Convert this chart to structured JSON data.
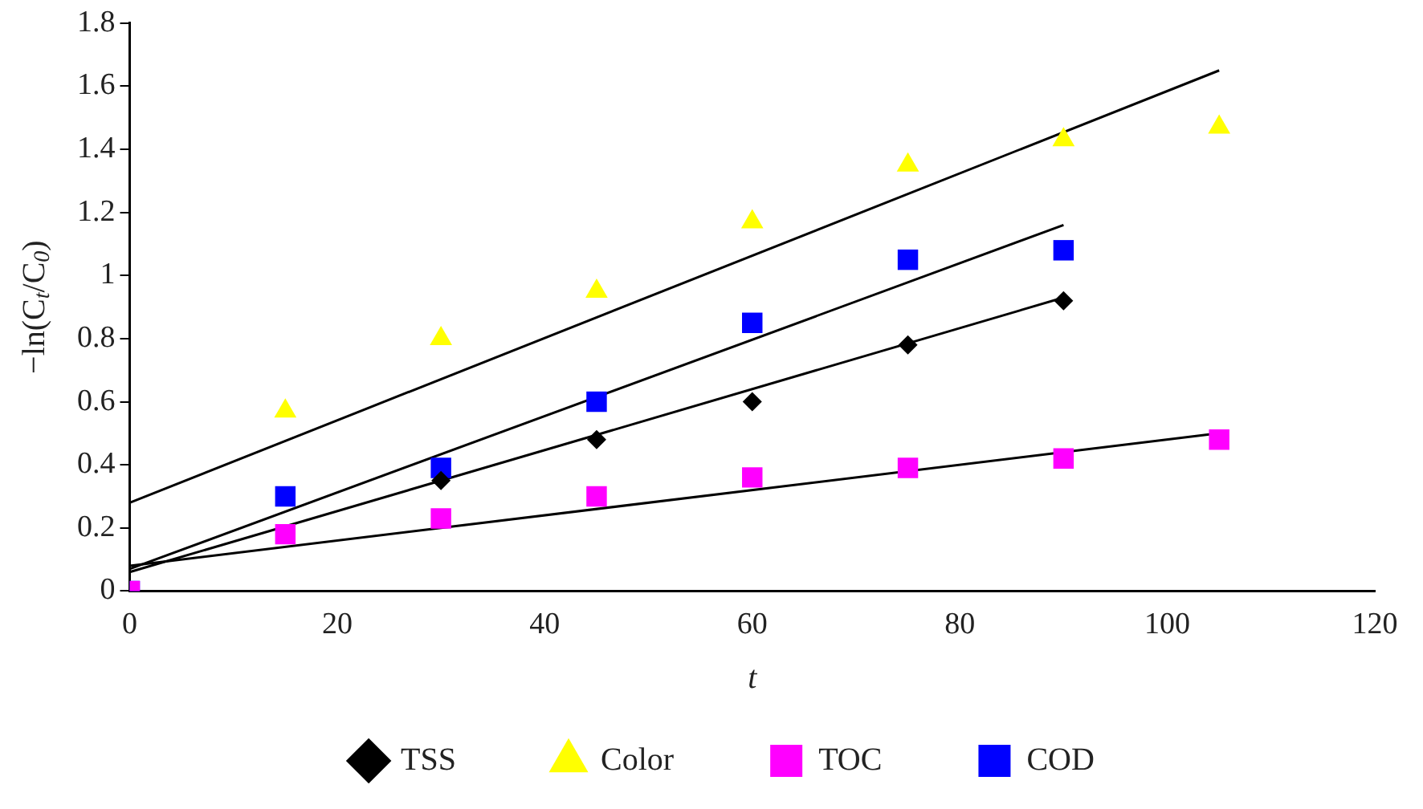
{
  "chart_data": {
    "type": "scatter",
    "xlabel": "t",
    "ylabel": "−ln(C$_{t}$/C$_{0}$)",
    "xlim": [
      0,
      120
    ],
    "xticks": [
      0,
      20,
      40,
      60,
      80,
      100,
      120
    ],
    "ylim": [
      0,
      1.8
    ],
    "yticks": [
      0,
      0.2,
      0.4,
      0.6,
      0.8,
      1,
      1.2,
      1.4,
      1.6,
      1.8
    ],
    "grid": false,
    "legend": "bottom",
    "series": [
      {
        "name": "TSS",
        "marker": "diamond",
        "color": "#000000",
        "x": [
          30,
          45,
          60,
          75,
          90
        ],
        "values": [
          0.35,
          0.48,
          0.6,
          0.78,
          0.92
        ]
      },
      {
        "name": "Color",
        "marker": "triangle",
        "color": "#ffff00",
        "x": [
          15,
          30,
          45,
          60,
          75,
          90,
          105
        ],
        "values": [
          0.57,
          0.8,
          0.95,
          1.17,
          1.35,
          1.43,
          1.47
        ]
      },
      {
        "name": "TOC",
        "marker": "square",
        "color": "#ff00ff",
        "x": [
          0,
          15,
          30,
          45,
          60,
          75,
          90,
          105
        ],
        "values": [
          0,
          0.18,
          0.23,
          0.3,
          0.36,
          0.39,
          0.42,
          0.48
        ]
      },
      {
        "name": "COD",
        "marker": "square",
        "color": "#0000ff",
        "x": [
          0,
          15,
          30,
          45,
          60,
          75,
          90
        ],
        "values": [
          0,
          0.3,
          0.39,
          0.6,
          0.85,
          1.05,
          1.08
        ]
      },
      {
        "type": "line",
        "marker": "none",
        "color": "#000000",
        "x": [
          0,
          105
        ],
        "values": [
          0.28,
          1.65
        ]
      },
      {
        "type": "line",
        "marker": "none",
        "color": "#000000",
        "x": [
          0,
          90
        ],
        "values": [
          0.07,
          1.16
        ]
      },
      {
        "type": "line",
        "marker": "none",
        "color": "#000000",
        "x": [
          0,
          90
        ],
        "values": [
          0.06,
          0.93
        ]
      },
      {
        "type": "line",
        "marker": "none",
        "color": "#000000",
        "x": [
          0,
          105
        ],
        "values": [
          0.08,
          0.5
        ]
      }
    ]
  }
}
